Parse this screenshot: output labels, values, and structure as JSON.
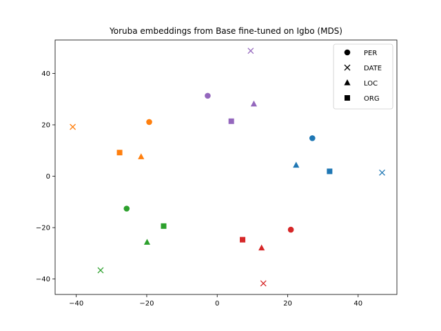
{
  "chart_data": {
    "type": "scatter",
    "title": "Yoruba embeddings from Base fine-tuned on Igbo (MDS)",
    "xlabel": "",
    "ylabel": "",
    "xlim": [
      -46,
      51
    ],
    "ylim": [
      -46,
      53
    ],
    "xticks": [
      -40,
      -20,
      0,
      20,
      40
    ],
    "yticks": [
      -40,
      -20,
      0,
      20,
      40
    ],
    "grid": false,
    "legend": {
      "placement": "top-right",
      "entries": [
        {
          "label": "PER",
          "marker": "circle"
        },
        {
          "label": "DATE",
          "marker": "x"
        },
        {
          "label": "LOC",
          "marker": "triangle"
        },
        {
          "label": "ORG",
          "marker": "square"
        }
      ]
    },
    "colors": {
      "blue": "#1f77b4",
      "orange": "#ff7f0e",
      "green": "#2ca02c",
      "red": "#d62728",
      "purple": "#9467bd"
    },
    "points": [
      {
        "x": 27,
        "y": 14.8,
        "marker": "circle",
        "color": "blue"
      },
      {
        "x": 46.8,
        "y": 1.4,
        "marker": "x",
        "color": "blue"
      },
      {
        "x": 22.4,
        "y": 4.3,
        "marker": "triangle",
        "color": "blue"
      },
      {
        "x": 31.9,
        "y": 1.9,
        "marker": "square",
        "color": "blue"
      },
      {
        "x": -19.3,
        "y": 21.1,
        "marker": "circle",
        "color": "orange"
      },
      {
        "x": -41,
        "y": 19.2,
        "marker": "x",
        "color": "orange"
      },
      {
        "x": -21.6,
        "y": 7.6,
        "marker": "triangle",
        "color": "orange"
      },
      {
        "x": -27.7,
        "y": 9.2,
        "marker": "square",
        "color": "orange"
      },
      {
        "x": -25.7,
        "y": -12.6,
        "marker": "circle",
        "color": "green"
      },
      {
        "x": -33.1,
        "y": -36.6,
        "marker": "x",
        "color": "green"
      },
      {
        "x": -19.9,
        "y": -25.7,
        "marker": "triangle",
        "color": "green"
      },
      {
        "x": -15.2,
        "y": -19.4,
        "marker": "square",
        "color": "green"
      },
      {
        "x": 20.9,
        "y": -20.8,
        "marker": "circle",
        "color": "red"
      },
      {
        "x": 13.1,
        "y": -41.7,
        "marker": "x",
        "color": "red"
      },
      {
        "x": 12.6,
        "y": -27.9,
        "marker": "triangle",
        "color": "red"
      },
      {
        "x": 7.2,
        "y": -24.7,
        "marker": "square",
        "color": "red"
      },
      {
        "x": -2.7,
        "y": 31.3,
        "marker": "circle",
        "color": "purple"
      },
      {
        "x": 9.5,
        "y": 48.8,
        "marker": "x",
        "color": "purple"
      },
      {
        "x": 10.4,
        "y": 28.1,
        "marker": "triangle",
        "color": "purple"
      },
      {
        "x": 4,
        "y": 21.4,
        "marker": "square",
        "color": "purple"
      }
    ]
  }
}
